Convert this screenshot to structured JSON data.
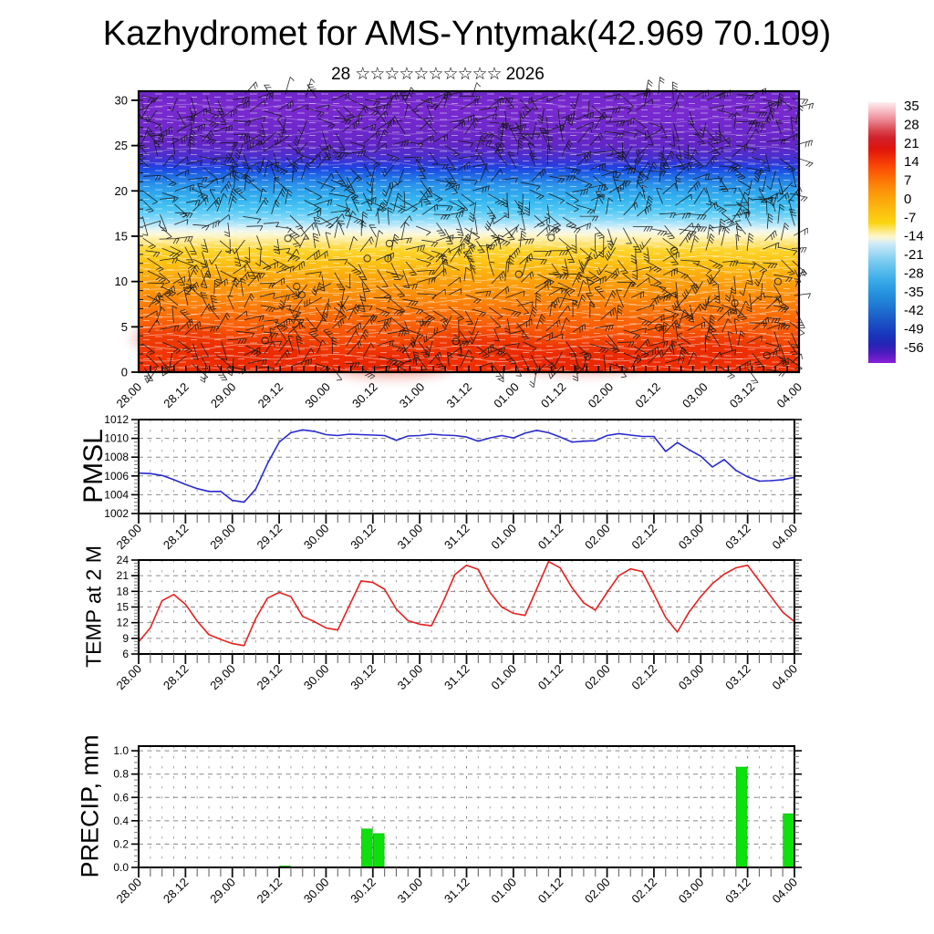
{
  "title": "Kazhydromet for AMS-Yntymak(42.969 70.109)",
  "subtitle": {
    "day": "28",
    "stars": "☆☆☆☆☆☆☆☆☆☆",
    "year": "2026"
  },
  "time_axis": {
    "tick_labels": [
      "28.00",
      "28.12",
      "29.00",
      "29.12",
      "30.00",
      "30.12",
      "31.00",
      "31.12",
      "01.00",
      "01.12",
      "02.00",
      "02.12",
      "03.00",
      "03.12",
      "04.00"
    ],
    "steps_per_label": 4,
    "total_steps": 56,
    "step_hours": 3
  },
  "colorbar": {
    "tick_labels": [
      "35",
      "28",
      "21",
      "14",
      "7",
      "0",
      "-7",
      "-14",
      "-21",
      "-28",
      "-35",
      "-42",
      "-49",
      "-56"
    ],
    "palette": [
      [
        0.0,
        "#fdeef0"
      ],
      [
        0.036,
        "#f7bac2"
      ],
      [
        0.071,
        "#ea848e"
      ],
      [
        0.107,
        "#da4750"
      ],
      [
        0.138,
        "#d0202a"
      ],
      [
        0.179,
        "#e0140c"
      ],
      [
        0.214,
        "#ef2e08"
      ],
      [
        0.25,
        "#fa4c05"
      ],
      [
        0.286,
        "#fb6a06"
      ],
      [
        0.321,
        "#fc8508"
      ],
      [
        0.357,
        "#fc9d0a"
      ],
      [
        0.393,
        "#fcb00d"
      ],
      [
        0.429,
        "#fcc310"
      ],
      [
        0.464,
        "#fbd513"
      ],
      [
        0.49,
        "#fce878"
      ],
      [
        0.515,
        "#fdf6c8"
      ],
      [
        0.527,
        "#eef4e2"
      ],
      [
        0.54,
        "#d2ecf6"
      ],
      [
        0.575,
        "#a6dcf4"
      ],
      [
        0.607,
        "#7fccf0"
      ],
      [
        0.643,
        "#5bbdec"
      ],
      [
        0.679,
        "#3dade8"
      ],
      [
        0.714,
        "#2b9ce2"
      ],
      [
        0.75,
        "#2389da"
      ],
      [
        0.786,
        "#1f75d2"
      ],
      [
        0.821,
        "#1c60ca"
      ],
      [
        0.857,
        "#194bc2"
      ],
      [
        0.893,
        "#1736ba"
      ],
      [
        0.929,
        "#2524b4"
      ],
      [
        0.96,
        "#4a1cbe"
      ],
      [
        1.0,
        "#8a1ed8"
      ]
    ]
  },
  "chart_data": [
    {
      "id": "cross_section",
      "type": "heatmap",
      "content": "vertical temperature cross-section with wind barbs",
      "ylabel": "",
      "ylim": [
        0,
        31
      ],
      "ytick_values": [
        0,
        5,
        10,
        15,
        20,
        25,
        30
      ],
      "ytick_labels": [
        "0",
        "5",
        "10",
        "15",
        "20",
        "25",
        "30"
      ],
      "gradient": [
        [
          0.0,
          "#6e26c9"
        ],
        [
          0.06,
          "#7a2ad0"
        ],
        [
          0.13,
          "#6f28cb"
        ],
        [
          0.19,
          "#6326c6"
        ],
        [
          0.235,
          "#4a2fce"
        ],
        [
          0.262,
          "#2a3bdc"
        ],
        [
          0.278,
          "#1c49e2"
        ],
        [
          0.3,
          "#1f6ae4"
        ],
        [
          0.335,
          "#2b95ea"
        ],
        [
          0.385,
          "#35b4ef"
        ],
        [
          0.42,
          "#4cc6f4"
        ],
        [
          0.455,
          "#86d9f8"
        ],
        [
          0.478,
          "#c0eafa"
        ],
        [
          0.495,
          "#ecf6f0"
        ],
        [
          0.512,
          "#fdf7cf"
        ],
        [
          0.535,
          "#fde88a"
        ],
        [
          0.565,
          "#fcd52c"
        ],
        [
          0.615,
          "#fcc013"
        ],
        [
          0.675,
          "#fba20d"
        ],
        [
          0.74,
          "#fb880b"
        ],
        [
          0.805,
          "#fa6a09"
        ],
        [
          0.87,
          "#f65207"
        ],
        [
          0.935,
          "#f23a05"
        ],
        [
          1.0,
          "#ee2d04"
        ]
      ]
    },
    {
      "id": "pmsl",
      "type": "line",
      "ylabel": "PMSL",
      "color": "#2929cf",
      "ylim": [
        1002,
        1012
      ],
      "ytick_values": [
        1002,
        1004,
        1006,
        1008,
        1010,
        1012
      ],
      "ytick_labels": [
        "1002",
        "1004",
        "1006",
        "1008",
        "1010",
        "1012"
      ],
      "grid_values": [
        1004,
        1006,
        1008,
        1010
      ],
      "values": [
        1006.3,
        1006.25,
        1006.05,
        1005.6,
        1005.1,
        1004.65,
        1004.35,
        1004.35,
        1003.4,
        1003.2,
        1004.6,
        1007.3,
        1009.6,
        1010.6,
        1010.9,
        1010.75,
        1010.4,
        1010.3,
        1010.45,
        1010.4,
        1010.35,
        1010.3,
        1009.8,
        1010.25,
        1010.3,
        1010.45,
        1010.35,
        1010.3,
        1010.15,
        1009.7,
        1010.05,
        1010.3,
        1010.05,
        1010.55,
        1010.85,
        1010.6,
        1010.15,
        1009.6,
        1009.7,
        1009.75,
        1010.3,
        1010.5,
        1010.35,
        1010.2,
        1010.2,
        1008.6,
        1009.55,
        1008.8,
        1008.1,
        1006.95,
        1007.75,
        1006.6,
        1005.9,
        1005.45,
        1005.5,
        1005.6,
        1005.85
      ]
    },
    {
      "id": "temp2m",
      "type": "line",
      "ylabel": "TEMP at 2 M",
      "color": "#e82020",
      "ylim": [
        6,
        24
      ],
      "ytick_values": [
        6,
        9,
        12,
        15,
        18,
        21,
        24
      ],
      "ytick_labels": [
        "6",
        "9",
        "12",
        "15",
        "18",
        "21",
        "24"
      ],
      "grid_values": [
        9,
        12,
        15,
        18,
        21
      ],
      "values": [
        8.3,
        11.0,
        16.2,
        17.4,
        15.5,
        12.3,
        9.7,
        8.8,
        8.0,
        7.6,
        12.8,
        16.7,
        17.8,
        17.0,
        13.2,
        12.2,
        11.0,
        10.6,
        15.3,
        20.0,
        19.7,
        18.4,
        14.6,
        12.4,
        11.7,
        11.4,
        16.0,
        21.2,
        23.0,
        22.2,
        17.8,
        15.0,
        13.8,
        13.4,
        18.5,
        23.7,
        22.5,
        18.7,
        15.8,
        14.4,
        17.8,
        21.0,
        22.3,
        21.8,
        17.5,
        13.0,
        10.2,
        14.0,
        17.0,
        19.5,
        21.3,
        22.5,
        23.0,
        20.0,
        17.0,
        14.0,
        12.2
      ]
    },
    {
      "id": "precip",
      "type": "bar",
      "ylabel": "PRECIP, mm",
      "color": "#0de00d",
      "bar_edge_color": "#00b400",
      "ylim": [
        0,
        1.04
      ],
      "ytick_values": [
        0,
        0.2,
        0.4,
        0.6,
        0.8,
        1.0
      ],
      "ytick_labels": [
        "0.0",
        "0.2",
        "0.4",
        "0.6",
        "0.8",
        "1.0"
      ],
      "grid_values": [
        0.2,
        0.4,
        0.6,
        0.8,
        1.0
      ],
      "values": [
        0,
        0,
        0,
        0,
        0,
        0,
        0,
        0,
        0,
        0,
        0,
        0,
        0,
        0.012,
        0,
        0,
        0,
        0,
        0,
        0,
        0.33,
        0.29,
        0,
        0,
        0,
        0,
        0,
        0,
        0,
        0,
        0,
        0,
        0,
        0,
        0,
        0,
        0,
        0,
        0,
        0,
        0,
        0,
        0,
        0,
        0,
        0,
        0,
        0,
        0,
        0,
        0,
        0,
        0.86,
        0,
        0,
        0,
        0.46
      ]
    }
  ]
}
